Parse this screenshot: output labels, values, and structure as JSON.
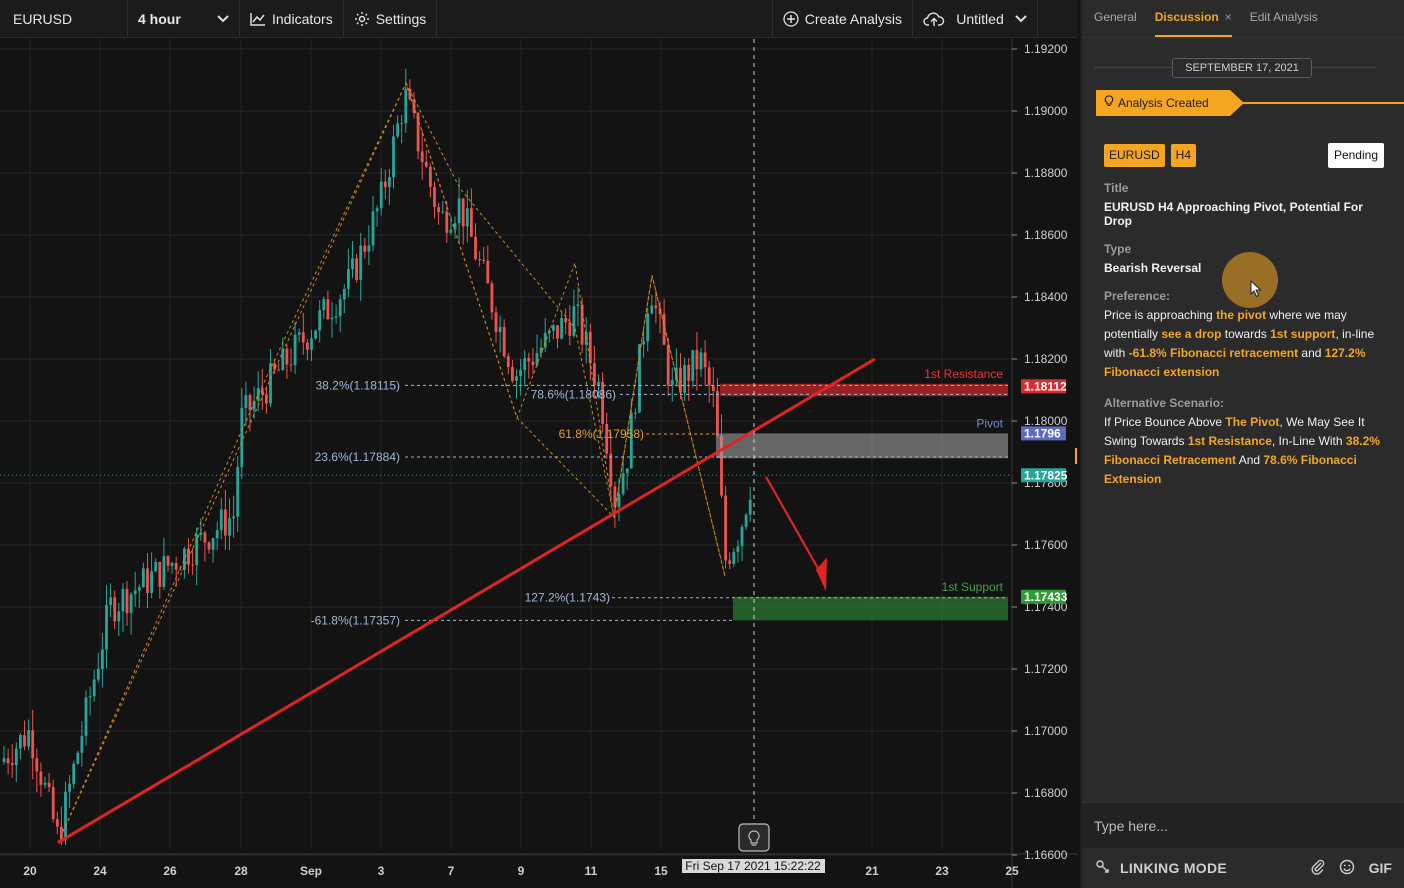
{
  "toolbar": {
    "symbol": "EURUSD",
    "interval": "4 hour",
    "indicators_label": "Indicators",
    "settings_label": "Settings",
    "create_analysis_label": "Create Analysis",
    "layout_name": "Untitled"
  },
  "panel": {
    "tabs": [
      {
        "label": "General"
      },
      {
        "label": "Discussion",
        "close": "×"
      },
      {
        "label": "Edit Analysis"
      }
    ],
    "date": "SEPTEMBER 17, 2021",
    "event": "Analysis Created",
    "card": {
      "symbol_badge": "EURUSD",
      "timeframe_badge": "H4",
      "status": "Pending",
      "title_label": "Title",
      "title_value": "EURUSD H4 Approaching Pivot, Potential For Drop",
      "type_label": "Type",
      "type_value": "Bearish Reversal",
      "preference_label": "Preference:",
      "preference": [
        {
          "t": "Price is approaching "
        },
        {
          "t": "the pivot",
          "hl": true
        },
        {
          "t": " where we may potentially "
        },
        {
          "t": "see a drop",
          "hl": true
        },
        {
          "t": " towards "
        },
        {
          "t": "1st support",
          "hl": true
        },
        {
          "t": ", in-line with "
        },
        {
          "t": "-61.8% Fibonacci retracement",
          "hl": true
        },
        {
          "t": " and "
        },
        {
          "t": "127.2% Fibonacci extension",
          "hl": true
        }
      ],
      "alternative_label": "Alternative Scenario:",
      "alternative": [
        {
          "t": "If Price Bounce Above "
        },
        {
          "t": "The Pivot",
          "hl": true
        },
        {
          "t": ", We May See It Swing Towards "
        },
        {
          "t": "1st Resistance",
          "hl": true
        },
        {
          "t": ", In-Line With "
        },
        {
          "t": "38.2% Fibonacci Retracement",
          "hl": true
        },
        {
          "t": " And "
        },
        {
          "t": "78.6% Fibonacci Extension",
          "hl": true
        }
      ]
    },
    "input_placeholder": "Type here...",
    "linking_mode": "LINKING MODE",
    "gif_label": "GIF"
  },
  "chart_data": {
    "type": "candlestick",
    "symbol": "EURUSD",
    "timeframe": "4 hour",
    "ylim": [
      1.166,
      1.192
    ],
    "y_ticks": [
      "1.19200",
      "1.19000",
      "1.18800",
      "1.18600",
      "1.18400",
      "1.18200",
      "1.18000",
      "1.17800",
      "1.17600",
      "1.17400",
      "1.17200",
      "1.17000",
      "1.16800",
      "1.16600"
    ],
    "x_ticks": [
      "20",
      "24",
      "26",
      "28",
      "Sep",
      "3",
      "7",
      "9",
      "11",
      "15",
      "21",
      "23",
      "25"
    ],
    "crosshair_label": "Fri Sep 17 2021 15:22:22",
    "price_tags": [
      {
        "label": "1.18112",
        "value": 1.18112,
        "color": "#d32f2f"
      },
      {
        "label": "1.1796",
        "value": 1.1796,
        "color": "#5c6bc0"
      },
      {
        "label": "1.17825",
        "value": 1.17825,
        "color": "#26a69a"
      },
      {
        "label": "1.17433",
        "value": 1.17433,
        "color": "#2e9d32"
      }
    ],
    "zones": [
      {
        "name": "1st Resistance",
        "from": 1.1808,
        "to": 1.1812,
        "color": "#c62828"
      },
      {
        "name": "Pivot",
        "from": 1.1788,
        "to": 1.1796,
        "color": "#9e9e9e"
      },
      {
        "name": "1st Support",
        "from": 1.17357,
        "to": 1.17433,
        "color": "#2e7d32"
      }
    ],
    "fib_levels": [
      {
        "label": "38.2%(1.18115)",
        "value": 1.18115
      },
      {
        "label": "78.6%(1.18086)",
        "value": 1.18086
      },
      {
        "label": "61.8%(1.17958)",
        "value": 1.17958
      },
      {
        "label": "23.6%(1.17884)",
        "value": 1.17884
      },
      {
        "label": "127.2%(1.1743)",
        "value": 1.1743
      },
      {
        "label": "-61.8%(1.17357)",
        "value": 1.17357
      }
    ],
    "trendline": [
      [
        1.1664,
        0
      ],
      [
        1.182,
        1
      ]
    ]
  }
}
